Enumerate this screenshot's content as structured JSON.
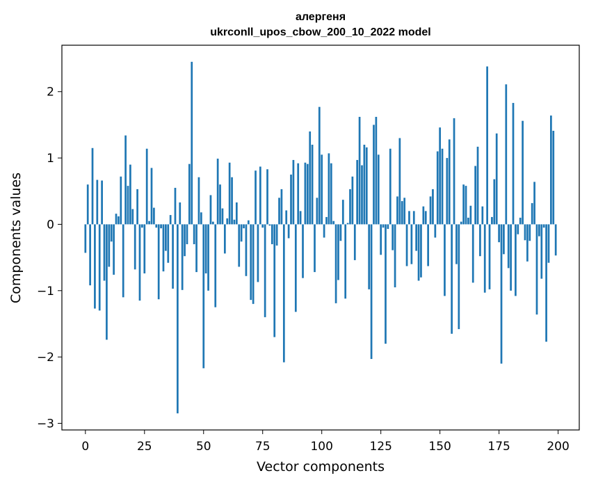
{
  "chart_data": {
    "type": "bar",
    "title": "алергеня",
    "subtitle": "ukrconll_upos_cbow_200_10_2022 model",
    "xlabel": "Vector components",
    "ylabel": "Components values",
    "xlim": [
      -9.95,
      208.95
    ],
    "ylim": [
      -3.1,
      2.7
    ],
    "xticks": [
      0,
      25,
      50,
      75,
      100,
      125,
      150,
      175,
      200
    ],
    "yticks": [
      -3,
      -2,
      -1,
      0,
      1,
      2
    ],
    "ytick_labels": [
      "−3",
      "−2",
      "−1",
      "0",
      "1",
      "2"
    ],
    "bar_color": "#1f77b4",
    "x": [
      0,
      1,
      2,
      3,
      4,
      5,
      6,
      7,
      8,
      9,
      10,
      11,
      12,
      13,
      14,
      15,
      16,
      17,
      18,
      19,
      20,
      21,
      22,
      23,
      24,
      25,
      26,
      27,
      28,
      29,
      30,
      31,
      32,
      33,
      34,
      35,
      36,
      37,
      38,
      39,
      40,
      41,
      42,
      43,
      44,
      45,
      46,
      47,
      48,
      49,
      50,
      51,
      52,
      53,
      54,
      55,
      56,
      57,
      58,
      59,
      60,
      61,
      62,
      63,
      64,
      65,
      66,
      67,
      68,
      69,
      70,
      71,
      72,
      73,
      74,
      75,
      76,
      77,
      78,
      79,
      80,
      81,
      82,
      83,
      84,
      85,
      86,
      87,
      88,
      89,
      90,
      91,
      92,
      93,
      94,
      95,
      96,
      97,
      98,
      99,
      100,
      101,
      102,
      103,
      104,
      105,
      106,
      107,
      108,
      109,
      110,
      111,
      112,
      113,
      114,
      115,
      116,
      117,
      118,
      119,
      120,
      121,
      122,
      123,
      124,
      125,
      126,
      127,
      128,
      129,
      130,
      131,
      132,
      133,
      134,
      135,
      136,
      137,
      138,
      139,
      140,
      141,
      142,
      143,
      144,
      145,
      146,
      147,
      148,
      149,
      150,
      151,
      152,
      153,
      154,
      155,
      156,
      157,
      158,
      159,
      160,
      161,
      162,
      163,
      164,
      165,
      166,
      167,
      168,
      169,
      170,
      171,
      172,
      173,
      174,
      175,
      176,
      177,
      178,
      179,
      180,
      181,
      182,
      183,
      184,
      185,
      186,
      187,
      188,
      189,
      190,
      191,
      192,
      193,
      194,
      195,
      196,
      197,
      198,
      199
    ],
    "values": [
      -0.43,
      0.6,
      -0.92,
      1.15,
      -1.27,
      0.67,
      -1.3,
      0.66,
      -0.85,
      -1.74,
      -0.64,
      -0.26,
      -0.76,
      0.16,
      0.12,
      0.72,
      -1.1,
      1.34,
      0.58,
      0.9,
      0.23,
      -0.68,
      0.53,
      -1.15,
      -0.05,
      -0.74,
      1.14,
      0.05,
      0.85,
      0.25,
      -0.05,
      -1.13,
      -0.06,
      -0.71,
      -0.4,
      -0.58,
      0.14,
      -0.97,
      0.55,
      -2.85,
      0.33,
      -0.99,
      -0.48,
      -0.3,
      0.91,
      2.45,
      -0.3,
      -0.72,
      0.71,
      0.18,
      -2.17,
      -0.74,
      -1.0,
      0.44,
      0.04,
      -1.25,
      0.99,
      0.6,
      0.24,
      -0.44,
      0.09,
      0.93,
      0.71,
      0.07,
      0.33,
      -0.64,
      -0.26,
      -0.06,
      -0.78,
      0.06,
      -1.14,
      -1.2,
      0.81,
      -0.87,
      0.87,
      -0.05,
      -1.4,
      0.83,
      -0.02,
      -0.3,
      -1.7,
      -0.32,
      0.4,
      0.53,
      -2.08,
      0.21,
      -0.21,
      0.75,
      0.97,
      -1.32,
      0.92,
      0.2,
      -0.81,
      0.93,
      0.91,
      1.4,
      1.2,
      -0.72,
      0.4,
      1.77,
      1.05,
      -0.2,
      0.11,
      1.07,
      0.92,
      0.05,
      -1.19,
      -0.84,
      -0.25,
      0.37,
      -1.12,
      0.02,
      0.53,
      0.72,
      -0.54,
      0.97,
      1.62,
      0.89,
      1.2,
      1.16,
      -0.98,
      -2.03,
      1.5,
      1.62,
      1.05,
      -0.46,
      -0.05,
      -1.8,
      -0.07,
      1.14,
      -0.39,
      -0.95,
      0.42,
      1.3,
      0.35,
      0.4,
      -0.63,
      0.2,
      -0.6,
      0.2,
      -0.4,
      -0.85,
      -0.8,
      0.27,
      0.2,
      -0.63,
      0.42,
      0.53,
      -0.2,
      1.1,
      1.46,
      1.14,
      -1.08,
      1.0,
      1.28,
      -1.65,
      1.6,
      -0.6,
      -1.58,
      0.04,
      0.6,
      0.58,
      0.1,
      0.28,
      -0.88,
      0.88,
      1.17,
      -0.48,
      0.27,
      -1.03,
      2.38,
      -0.98,
      0.11,
      0.68,
      1.37,
      -0.27,
      -2.1,
      -0.45,
      2.11,
      -0.66,
      -1.0,
      1.83,
      -1.08,
      -0.15,
      0.1,
      1.56,
      -0.24,
      -0.56,
      -0.25,
      0.32,
      0.64,
      -1.36,
      -0.18,
      -0.82,
      -0.05,
      -1.77,
      -0.58,
      1.64,
      1.41,
      -0.47
    ]
  }
}
